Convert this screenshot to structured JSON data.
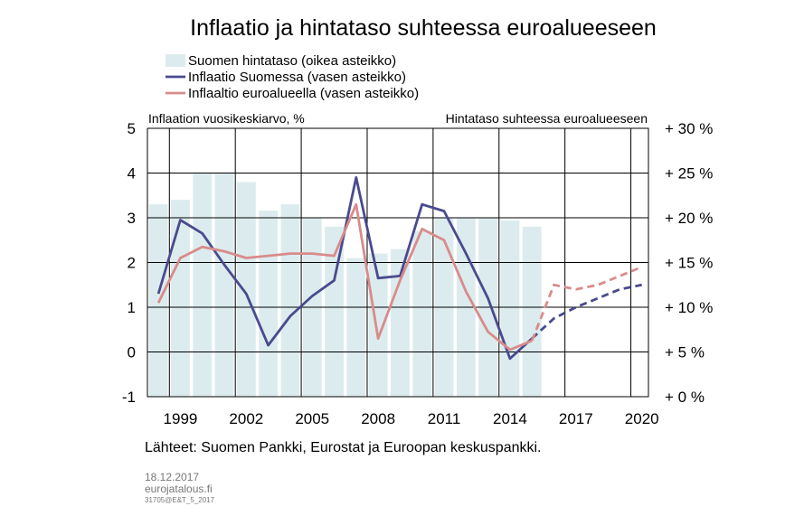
{
  "chart_data": {
    "type": "bar+line",
    "title": "Inflaatio ja hintataso suhteessa euroalueeseen",
    "left_axis_title": "Inflaation vuosikeskiarvo,  %",
    "right_axis_title": "Hintataso  suhteessa  euroalueeseen",
    "left_ylim": [
      -1,
      5
    ],
    "left_ticks": [
      "5",
      "4",
      "3",
      "2",
      "1",
      "0",
      "-1"
    ],
    "right_ylim": [
      0,
      30
    ],
    "right_ticks": [
      "+ 30 %",
      "+ 25 %",
      "+ 20 %",
      "+ 15 %",
      "+ 10 %",
      "+ 5 %",
      "+ 0 %"
    ],
    "x_ticks": [
      "1999",
      "2002",
      "2005",
      "2008",
      "2011",
      "2014",
      "2017",
      "2020"
    ],
    "grid": true,
    "legend_position": "top-left",
    "legend": [
      "Suomen hintataso (oikea asteikko)",
      "Inflaatio Suomessa (vasen asteikko)",
      "Inflaaltio euroalueella (vasen asteikko)"
    ],
    "bars": {
      "name": "Suomen hintataso (oikea asteikko)",
      "axis": "right",
      "color": "#dcecee",
      "x": [
        1998,
        1999,
        2000,
        2001,
        2002,
        2003,
        2004,
        2005,
        2006,
        2007,
        2008,
        2009,
        2010,
        2011,
        2012,
        2013,
        2014,
        2015
      ],
      "values": [
        21.5,
        22,
        25,
        25,
        24,
        20.8,
        21.5,
        20,
        19,
        15.5,
        16,
        16.5,
        18.5,
        20,
        20,
        20,
        19.7,
        19
      ]
    },
    "series": [
      {
        "name": "Inflaatio Suomessa (vasen asteikko)",
        "axis": "left",
        "color": "#4a4a8f",
        "x": [
          1998,
          1999,
          2000,
          2001,
          2002,
          2003,
          2004,
          2005,
          2006,
          2007,
          2008,
          2009,
          2010,
          2011,
          2012,
          2013,
          2014,
          2015
        ],
        "values": [
          1.3,
          2.95,
          2.65,
          1.95,
          1.3,
          0.15,
          0.8,
          1.25,
          1.6,
          3.9,
          1.65,
          1.7,
          3.3,
          3.15,
          2.2,
          1.2,
          -0.15,
          0.3
        ],
        "forecast_x": [
          2015,
          2016,
          2017,
          2018,
          2019,
          2020
        ],
        "forecast_values": [
          0.3,
          0.75,
          1.0,
          1.2,
          1.4,
          1.5
        ]
      },
      {
        "name": "Inflaaltio euroalueella (vasen asteikko)",
        "axis": "left",
        "color": "#d98b8b",
        "x": [
          1998,
          1999,
          2000,
          2001,
          2002,
          2003,
          2004,
          2005,
          2006,
          2007,
          2008,
          2009,
          2010,
          2011,
          2012,
          2013,
          2014,
          2015
        ],
        "values": [
          1.1,
          2.1,
          2.35,
          2.25,
          2.1,
          2.15,
          2.2,
          2.2,
          2.15,
          3.3,
          0.3,
          1.6,
          2.75,
          2.5,
          1.35,
          0.45,
          0.05,
          0.25
        ],
        "forecast_x": [
          2015,
          2016,
          2017,
          2018,
          2019,
          2020
        ],
        "forecast_values": [
          0.25,
          1.5,
          1.4,
          1.5,
          1.7,
          1.9
        ]
      }
    ]
  },
  "source_text": "Lähteet: Suomen Pankki, Eurostat ja Euroopan keskuspankki.",
  "footer": {
    "date": "18.12.2017",
    "site": "eurojatalous.fi",
    "code": "31705@E&T_5_2017"
  }
}
